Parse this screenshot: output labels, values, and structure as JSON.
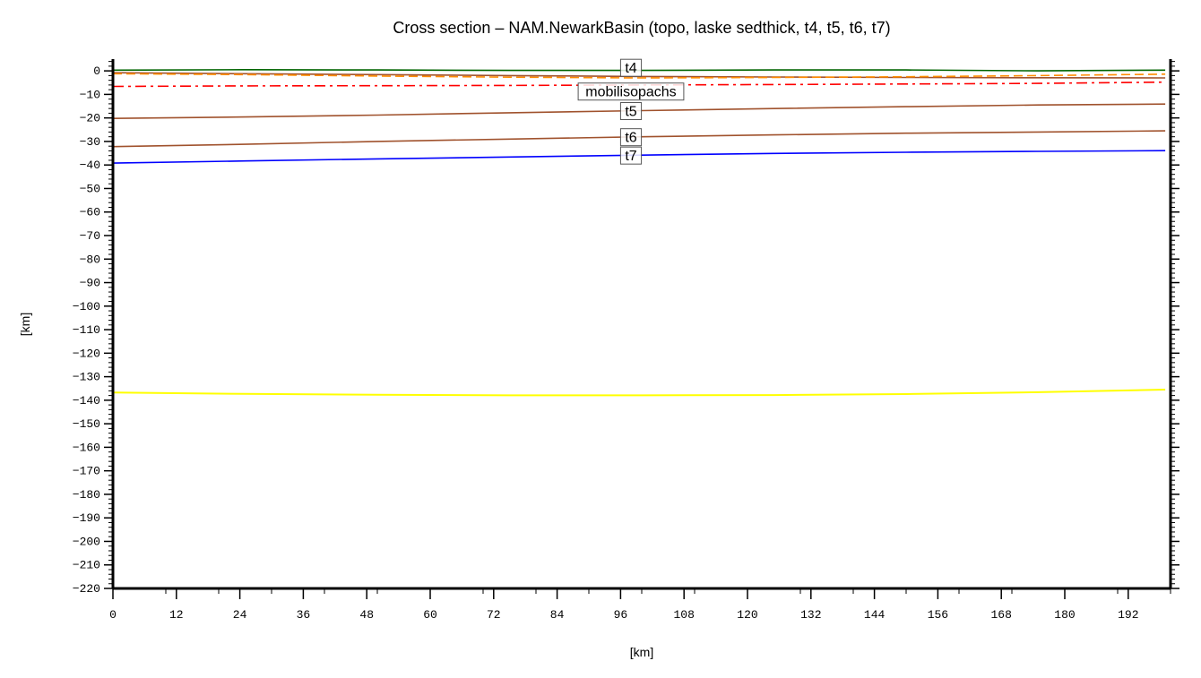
{
  "chart_data": {
    "type": "line",
    "title": "Cross section – NAM.NewarkBasin (topo, laske sedthick, t4, t5, t6, t7)",
    "xlabel": "[km]",
    "ylabel": "[km]",
    "xlim": [
      0,
      200
    ],
    "ylim": [
      -220,
      5
    ],
    "xticks": [
      0,
      12,
      24,
      36,
      48,
      60,
      72,
      84,
      96,
      108,
      120,
      132,
      144,
      156,
      168,
      180,
      192
    ],
    "yticks": [
      0,
      -10,
      -20,
      -30,
      -40,
      -50,
      -60,
      -70,
      -80,
      -90,
      -100,
      -110,
      -120,
      -130,
      -140,
      -150,
      -160,
      -170,
      -180,
      -190,
      -200,
      -210,
      -220
    ],
    "grid": false,
    "x": [
      0,
      25,
      50,
      75,
      100,
      125,
      150,
      175,
      199
    ],
    "series": [
      {
        "label": "",
        "color": "#006400",
        "style": "solid",
        "values": [
          0.3,
          0.5,
          0.4,
          0.2,
          0.2,
          0.4,
          0.4,
          0.0,
          0.3
        ]
      },
      {
        "label": "t4",
        "color": "#a0522d",
        "style": "solid",
        "values": [
          -0.8,
          -1.2,
          -1.6,
          -2.0,
          -2.4,
          -2.6,
          -2.8,
          -2.9,
          -3.0
        ]
      },
      {
        "label": "",
        "color": "#ff8c00",
        "style": "dashed",
        "values": [
          -1.2,
          -1.6,
          -2.2,
          -2.7,
          -3.0,
          -2.8,
          -2.5,
          -2.0,
          -1.4
        ]
      },
      {
        "label": "mobilisopachs",
        "color": "#ff0000",
        "style": "dashdot",
        "values": [
          -6.6,
          -6.4,
          -6.3,
          -6.2,
          -6.0,
          -5.8,
          -5.6,
          -5.3,
          -4.8
        ]
      },
      {
        "label": "t5",
        "color": "#a0522d",
        "style": "solid",
        "values": [
          -20.2,
          -19.6,
          -18.8,
          -17.8,
          -16.9,
          -16.0,
          -15.2,
          -14.5,
          -14.1
        ]
      },
      {
        "label": "t6",
        "color": "#a0522d",
        "style": "solid",
        "values": [
          -32.2,
          -31.2,
          -30.0,
          -29.0,
          -28.0,
          -27.2,
          -26.5,
          -26.0,
          -25.5
        ]
      },
      {
        "label": "t7",
        "color": "#0000ff",
        "style": "solid",
        "values": [
          -39.2,
          -38.3,
          -37.4,
          -36.6,
          -35.8,
          -35.1,
          -34.6,
          -34.2,
          -33.9
        ]
      },
      {
        "label": "",
        "color": "#ffff00",
        "style": "solid",
        "values": [
          -136.7,
          -137.3,
          -137.7,
          -137.9,
          -137.9,
          -137.8,
          -137.4,
          -136.6,
          -135.5
        ]
      }
    ],
    "curve_label_x": 100
  }
}
